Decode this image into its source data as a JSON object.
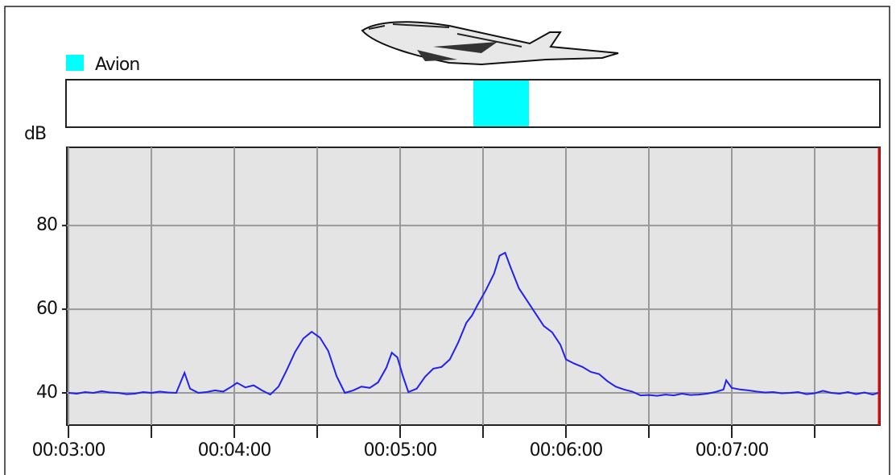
{
  "chart_data": {
    "type": "line",
    "y_label": "dB",
    "grid": true,
    "xlim": [
      179.4,
      473.6
    ],
    "ylim": [
      32.3,
      98.7
    ],
    "yticks": [
      40,
      60,
      80
    ],
    "xticks": [
      {
        "value": 180,
        "label": "00:03:00"
      },
      {
        "value": 240,
        "label": "00:04:00"
      },
      {
        "value": 300,
        "label": "00:05:00"
      },
      {
        "value": 360,
        "label": "00:06:00"
      },
      {
        "value": 420,
        "label": "00:07:00"
      }
    ],
    "minor_xticks": [
      210,
      270,
      330,
      390,
      450
    ],
    "events": [
      {
        "name": "Avion",
        "color": "#00ffff",
        "start": 326.5,
        "end": 346.6
      }
    ],
    "series": [
      {
        "color": "#2222ee",
        "x": [
          180,
          183,
          186,
          189,
          192,
          195,
          198,
          201,
          204,
          207,
          210,
          213,
          216,
          219,
          222,
          224,
          227,
          230,
          233,
          236,
          239,
          241,
          244,
          247,
          250,
          253,
          256,
          259,
          262,
          265,
          268,
          271,
          274,
          277,
          280,
          283,
          286,
          289,
          292,
          295,
          297,
          299,
          301,
          303,
          306,
          309,
          312,
          315,
          318,
          321,
          324,
          326,
          328,
          331,
          334,
          336,
          338,
          340,
          343,
          346,
          349,
          352,
          355,
          358,
          360,
          363,
          366,
          369,
          372,
          375,
          378,
          381,
          384,
          387,
          390,
          393,
          396,
          399,
          402,
          405,
          408,
          411,
          414,
          417,
          418,
          420,
          423,
          426,
          429,
          432,
          435,
          438,
          441,
          444,
          447,
          450,
          453,
          456,
          459,
          462,
          465,
          468,
          471,
          473
        ],
        "values": [
          40,
          39.8,
          40.2,
          40,
          40.4,
          40.1,
          40,
          39.7,
          39.8,
          40.2,
          40,
          40.3,
          40.1,
          40,
          44.8,
          41,
          40,
          40.2,
          40.6,
          40.3,
          41.5,
          42.4,
          41.3,
          41.8,
          40.6,
          39.6,
          41.5,
          45.5,
          49.8,
          53,
          54.6,
          53.2,
          50,
          44,
          40,
          40.6,
          41.5,
          41.2,
          42.5,
          46,
          49.6,
          48.5,
          44,
          40.2,
          41,
          43.8,
          45.8,
          46.2,
          48,
          52,
          56.8,
          58.5,
          61,
          64.5,
          68.5,
          72.8,
          73.5,
          70,
          65,
          62,
          59,
          56,
          54.5,
          51.5,
          48,
          47,
          46.2,
          45,
          44.5,
          42.8,
          41.5,
          40.8,
          40.3,
          39.4,
          39.5,
          39.3,
          39.6,
          39.4,
          39.8,
          39.5,
          39.6,
          39.8,
          40.2,
          40.8,
          43,
          41.2,
          40.8,
          40.6,
          40.3,
          40.1,
          40.2,
          39.9,
          40,
          40.2,
          39.7,
          39.9,
          40.5,
          40,
          39.8,
          40.2,
          39.7,
          40.1,
          39.6,
          40
        ]
      }
    ]
  }
}
